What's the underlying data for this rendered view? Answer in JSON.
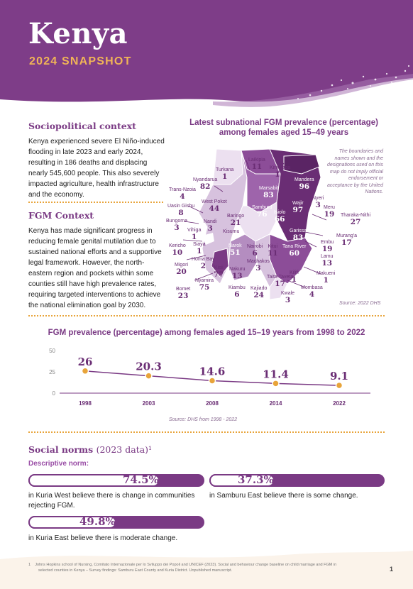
{
  "header": {
    "title": "Kenya",
    "subtitle": "2024 SNAPSHOT"
  },
  "sociopolitical": {
    "heading": "Sociopolitical context",
    "lines": [
      "Kenya experienced severe El Niño-induced",
      "flooding in late 2023 and early 2024,",
      "resulting in 186 deaths and displacing",
      "nearly 545,600 people. This also severely",
      "impacted agriculture, health infrastructure",
      "and the economy."
    ]
  },
  "fgm_context": {
    "heading": "FGM Context",
    "lines": [
      "Kenya has made significant progress in",
      "reducing female genital mutilation due to",
      "sustained national efforts and a supportive",
      "legal framework. However, the north-",
      "eastern region and pockets within some",
      "counties still have high prevalence rates,",
      "requiring targeted interventions to achieve",
      "the national elimination goal by 2030."
    ]
  },
  "map": {
    "title_line1": "Latest subnational FGM prevalence (percentage)",
    "title_line2": "among females aged 15–49 years",
    "disclaimer": "The boundaries and names shown and the designations used on this map do not imply official endorsement or acceptance by the United Nations.",
    "source": "Source: 2022 DHS",
    "colors": {
      "darkest": "#6a2d74",
      "dark": "#8c4d98",
      "mid": "#b48dc0",
      "light": "#d7c2de",
      "lightest": "#ece0f0"
    },
    "counties": [
      {
        "name": "Turkana",
        "value": "1"
      },
      {
        "name": "Laikipia",
        "value": "11"
      },
      {
        "name": "Kirinyaga",
        "value": "11"
      },
      {
        "name": "Nyandarua",
        "value": "82"
      },
      {
        "name": "Marsabit",
        "value": "83"
      },
      {
        "name": "Mandera",
        "value": "96"
      },
      {
        "name": "Trans-Nzoia",
        "value": "4"
      },
      {
        "name": "Nyeri",
        "value": "3"
      },
      {
        "name": "West Pokot",
        "value": "44"
      },
      {
        "name": "Wajir",
        "value": "97"
      },
      {
        "name": "Meru",
        "value": "19"
      },
      {
        "name": "Uasin Gishu",
        "value": "8"
      },
      {
        "name": "Samburu",
        "value": "76"
      },
      {
        "name": "Isiolo",
        "value": "66"
      },
      {
        "name": "Tharaka-Nithi",
        "value": "27"
      },
      {
        "name": "Bungoma",
        "value": "3"
      },
      {
        "name": "Nandi",
        "value": "3"
      },
      {
        "name": "Baringo",
        "value": "21"
      },
      {
        "name": "Vihiga",
        "value": "1"
      },
      {
        "name": "Garissa",
        "value": "83"
      },
      {
        "name": "Murang'a",
        "value": "17"
      },
      {
        "name": "Kisumu",
        "value": ""
      },
      {
        "name": "Kericho",
        "value": "10"
      },
      {
        "name": "Siaya",
        "value": "1"
      },
      {
        "name": "Embu",
        "value": "19"
      },
      {
        "name": "Narok",
        "value": "51"
      },
      {
        "name": "Nairobi",
        "value": "6"
      },
      {
        "name": "Kitui",
        "value": "11"
      },
      {
        "name": "Tana River",
        "value": "60"
      },
      {
        "name": "Homa Bay",
        "value": "2"
      },
      {
        "name": "Lamu",
        "value": "13"
      },
      {
        "name": "Migori",
        "value": "20"
      },
      {
        "name": "Machakos",
        "value": "3"
      },
      {
        "name": "Kisii",
        "value": "77"
      },
      {
        "name": "Nakuru",
        "value": "13"
      },
      {
        "name": "Nyamira",
        "value": "75"
      },
      {
        "name": "Taita Taveta",
        "value": "17"
      },
      {
        "name": "Kilifi",
        "value": "1"
      },
      {
        "name": "Makueni",
        "value": "1"
      },
      {
        "name": "Bomet",
        "value": "23"
      },
      {
        "name": "Kiambu",
        "value": "6"
      },
      {
        "name": "Kajiado",
        "value": "24"
      },
      {
        "name": "Mombasa",
        "value": "4"
      },
      {
        "name": "Kwale",
        "value": "3"
      }
    ]
  },
  "trend": {
    "title": "FGM prevalence (percentage) among females aged 15–19 years from 1998 to 2022",
    "source": "Source: DHS from 1998 - 2022",
    "line_color": "#7a3a84",
    "marker_color": "#e8a43a"
  },
  "chart_data": {
    "type": "line",
    "title": "FGM prevalence (percentage) among females aged 15–19 years from 1998 to 2022",
    "x": [
      "1998",
      "2003",
      "2008",
      "2014",
      "2022"
    ],
    "series": [
      {
        "values": [
          26,
          20.3,
          14.6,
          11.4,
          9.1
        ]
      }
    ],
    "data_labels": [
      "26",
      "20.3",
      "14.6",
      "11.4",
      "9.1"
    ],
    "yticks": [
      "50",
      "25",
      "0"
    ],
    "ylim": [
      0,
      50
    ],
    "grid": false
  },
  "social_norms": {
    "heading": "Social norms",
    "year": "(2023 data)¹",
    "sub": "Descriptive norm:",
    "items": [
      {
        "pct_label": "74.5%",
        "fraction": 0.745,
        "caption_lines": [
          "in Kuria West believe there is change in communities",
          "rejecting FGM."
        ]
      },
      {
        "pct_label": "37.3%",
        "fraction": 0.373,
        "caption_lines": [
          "in Samburu East believe there is some change."
        ]
      },
      {
        "pct_label": "49.8%",
        "fraction": 0.498,
        "caption_lines": [
          "in Kuria East believe there is moderate change."
        ]
      }
    ]
  },
  "footnote": {
    "marker": "1",
    "lines": [
      "Johns Hopkins school of Nursing, Comitato Internazionale per lo Sviluppo dei Popoli and UNICEF (2023). Social and behaviour change baseline on child marriage and FGM in",
      "selected counties in Kenya – Survey findings: Samburu East County and Kuria District. Unpublished manuscript."
    ]
  },
  "page_number": "1"
}
